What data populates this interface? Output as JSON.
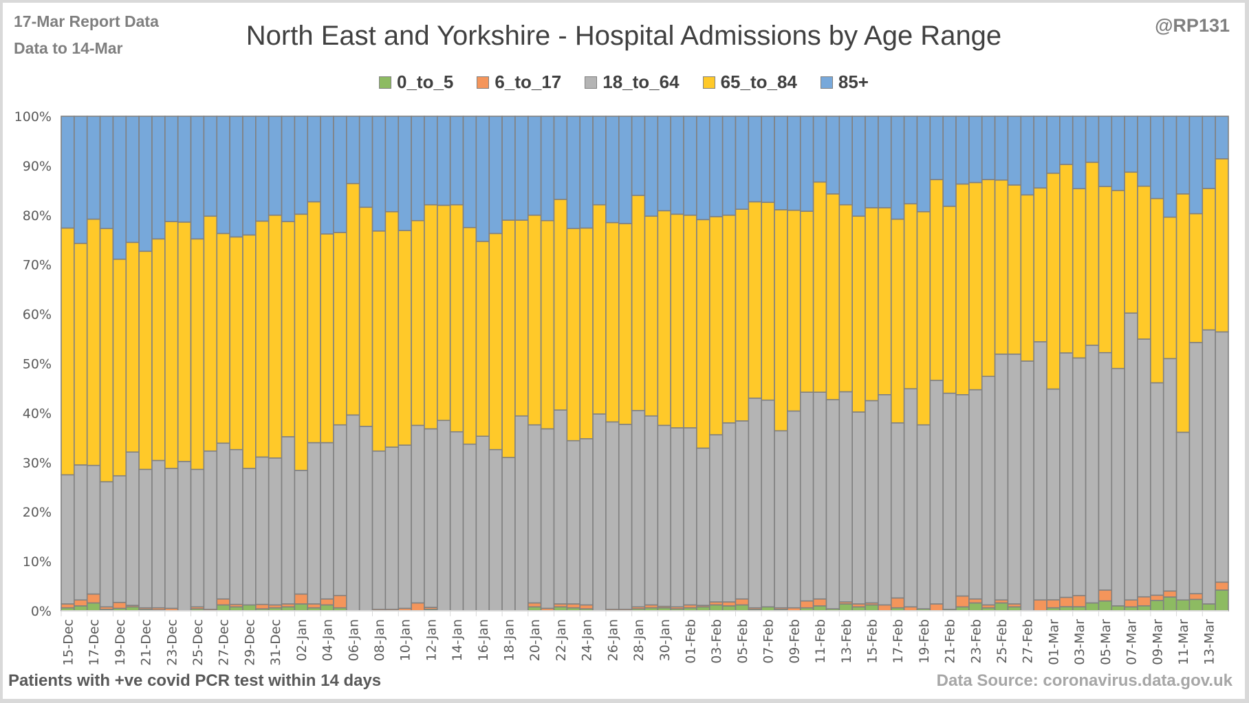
{
  "header": {
    "report_line1": "17-Mar Report Data",
    "report_line2": "Data to 14-Mar",
    "handle": "@RP131"
  },
  "footer": {
    "left": "Patients with  +ve covid PCR test within 14 days",
    "right": "Data Source: coronavirus.data.gov.uk"
  },
  "chart_data": {
    "type": "bar",
    "stacked": "100%",
    "title": "North East and Yorkshire - Hospital Admissions by Age Range",
    "xlabel": "",
    "ylabel": "",
    "ylim": [
      0,
      100
    ],
    "yticks": [
      "0%",
      "10%",
      "20%",
      "30%",
      "40%",
      "50%",
      "60%",
      "70%",
      "80%",
      "90%",
      "100%"
    ],
    "grid": true,
    "legend": "top-center",
    "categories": [
      "15-Dec",
      "16-Dec",
      "17-Dec",
      "18-Dec",
      "19-Dec",
      "20-Dec",
      "21-Dec",
      "22-Dec",
      "23-Dec",
      "24-Dec",
      "25-Dec",
      "26-Dec",
      "27-Dec",
      "28-Dec",
      "29-Dec",
      "30-Dec",
      "31-Dec",
      "01-Jan",
      "02-Jan",
      "03-Jan",
      "04-Jan",
      "05-Jan",
      "06-Jan",
      "07-Jan",
      "08-Jan",
      "09-Jan",
      "10-Jan",
      "11-Jan",
      "12-Jan",
      "13-Jan",
      "14-Jan",
      "15-Jan",
      "16-Jan",
      "17-Jan",
      "18-Jan",
      "19-Jan",
      "20-Jan",
      "21-Jan",
      "22-Jan",
      "23-Jan",
      "24-Jan",
      "25-Jan",
      "26-Jan",
      "27-Jan",
      "28-Jan",
      "29-Jan",
      "30-Jan",
      "31-Jan",
      "01-Feb",
      "02-Feb",
      "03-Feb",
      "04-Feb",
      "05-Feb",
      "06-Feb",
      "07-Feb",
      "08-Feb",
      "09-Feb",
      "10-Feb",
      "11-Feb",
      "12-Feb",
      "13-Feb",
      "14-Feb",
      "15-Feb",
      "16-Feb",
      "17-Feb",
      "18-Feb",
      "19-Feb",
      "20-Feb",
      "21-Feb",
      "22-Feb",
      "23-Feb",
      "24-Feb",
      "25-Feb",
      "26-Feb",
      "27-Feb",
      "28-Feb",
      "01-Mar",
      "02-Mar",
      "03-Mar",
      "04-Mar",
      "05-Mar",
      "06-Mar",
      "07-Mar",
      "08-Mar",
      "09-Mar",
      "10-Mar",
      "11-Mar",
      "12-Mar",
      "13-Mar",
      "14-Mar"
    ],
    "series": [
      {
        "name": "0_to_5",
        "color": "#8dbb62",
        "values": [
          0.6,
          1.0,
          1.6,
          0.3,
          0.5,
          0.8,
          0.3,
          0.2,
          0.0,
          0.0,
          0.4,
          0.0,
          1.2,
          0.8,
          1.2,
          0.4,
          0.6,
          0.8,
          1.4,
          0.6,
          1.2,
          0.6,
          0.0,
          0.0,
          0.0,
          0.0,
          0.0,
          0.0,
          0.3,
          0.0,
          0.0,
          0.0,
          0.0,
          0.0,
          0.0,
          0.0,
          0.8,
          0.0,
          0.8,
          0.6,
          0.4,
          0.0,
          0.0,
          0.0,
          0.4,
          0.6,
          0.6,
          0.4,
          0.6,
          0.8,
          1.2,
          1.0,
          1.2,
          0.3,
          0.8,
          0.3,
          0.0,
          0.6,
          1.0,
          0.4,
          1.4,
          0.8,
          1.2,
          0.0,
          0.6,
          0.0,
          0.4,
          0.0,
          0.3,
          0.8,
          1.6,
          0.6,
          1.6,
          0.8,
          0.0,
          0.0,
          0.6,
          0.8,
          0.8,
          1.6,
          2.0,
          1.0,
          0.8,
          1.0,
          2.0,
          2.8,
          2.2,
          2.4,
          1.4,
          4.2
        ]
      },
      {
        "name": "6_to_17",
        "color": "#f4955b",
        "values": [
          0.8,
          1.2,
          1.8,
          0.5,
          1.2,
          0.3,
          0.3,
          0.4,
          0.5,
          0.0,
          0.4,
          0.3,
          1.2,
          0.5,
          0.0,
          0.9,
          0.6,
          0.6,
          2.0,
          0.8,
          1.2,
          2.5,
          0.0,
          0.0,
          0.3,
          0.3,
          0.5,
          1.6,
          0.4,
          0.0,
          0.0,
          0.0,
          0.0,
          0.0,
          0.0,
          0.0,
          0.8,
          0.5,
          0.6,
          0.8,
          0.8,
          0.0,
          0.3,
          0.3,
          0.4,
          0.6,
          0.3,
          0.4,
          0.6,
          0.3,
          0.6,
          0.8,
          1.2,
          0.3,
          0.0,
          0.3,
          0.6,
          1.4,
          1.4,
          0.0,
          0.4,
          0.6,
          0.4,
          1.2,
          2.0,
          0.8,
          0.0,
          1.4,
          0.0,
          2.2,
          0.8,
          0.6,
          0.6,
          0.6,
          0.0,
          2.2,
          1.6,
          1.8,
          2.2,
          0.0,
          2.2,
          0.0,
          1.4,
          1.8,
          1.0,
          1.2,
          0.0,
          1.2,
          0.0,
          1.6
        ]
      },
      {
        "name": "18_to_64",
        "color": "#b4b4b4",
        "values": [
          26.1,
          27.3,
          26.0,
          25.3,
          25.6,
          31.0,
          28.0,
          29.8,
          28.3,
          30.2,
          27.8,
          32.0,
          31.5,
          31.3,
          27.6,
          29.8,
          29.7,
          33.8,
          25.0,
          32.6,
          31.6,
          34.5,
          39.6,
          37.3,
          32.0,
          32.8,
          33.0,
          35.9,
          36.1,
          38.5,
          36.2,
          33.7,
          35.3,
          32.6,
          31.0,
          39.4,
          36.0,
          36.3,
          39.2,
          33.0,
          33.6,
          39.8,
          37.9,
          37.4,
          39.7,
          38.2,
          36.6,
          36.2,
          35.8,
          31.8,
          33.8,
          36.2,
          36.0,
          42.4,
          41.8,
          35.8,
          39.8,
          42.2,
          41.8,
          42.3,
          42.5,
          38.8,
          40.9,
          42.5,
          35.4,
          44.1,
          37.2,
          45.2,
          43.7,
          40.7,
          42.3,
          46.2,
          49.7,
          50.5,
          50.5,
          52.2,
          42.2,
          47.2,
          46.6,
          52.1,
          48.0,
          48.0,
          58.0,
          51.6,
          40.8,
          47.0,
          33.9,
          52.6,
          55.4,
          50.6
        ]
      },
      {
        "name": "65_to_84",
        "color": "#ffc929",
        "values": [
          49.9,
          44.8,
          49.8,
          51.2,
          43.8,
          42.4,
          44.1,
          44.8,
          49.9,
          48.4,
          46.6,
          47.5,
          42.4,
          43.0,
          47.2,
          47.7,
          49.1,
          43.5,
          51.8,
          48.7,
          42.2,
          38.9,
          46.8,
          44.3,
          44.5,
          47.6,
          43.4,
          41.4,
          45.3,
          43.5,
          45.9,
          43.8,
          39.4,
          43.7,
          48.0,
          39.6,
          42.4,
          42.1,
          42.6,
          42.9,
          42.6,
          42.3,
          40.3,
          40.6,
          43.5,
          40.4,
          43.4,
          43.2,
          43.0,
          46.2,
          44.1,
          42.0,
          42.8,
          39.7,
          40.0,
          44.7,
          40.6,
          36.6,
          42.5,
          41.6,
          37.8,
          39.6,
          39.0,
          37.8,
          41.2,
          37.4,
          43.1,
          40.6,
          37.8,
          42.6,
          41.9,
          39.8,
          35.2,
          34.2,
          33.6,
          31.1,
          43.2,
          36.4,
          33.2,
          37.0,
          33.6,
          36.0,
          28.5,
          30.6,
          35.4,
          28.6,
          48.2,
          27.0,
          28.6,
          35.0
        ]
      },
      {
        "name": "85+",
        "color": "#77a8da",
        "values": [
          22.6,
          25.7,
          20.8,
          22.7,
          28.9,
          25.5,
          27.3,
          24.8,
          21.3,
          21.4,
          24.8,
          20.2,
          23.7,
          24.4,
          24.0,
          21.2,
          20.0,
          21.3,
          19.8,
          17.3,
          23.8,
          23.5,
          13.6,
          18.4,
          23.2,
          19.3,
          23.1,
          21.1,
          17.9,
          18.0,
          17.9,
          22.5,
          25.3,
          23.7,
          21.0,
          21.0,
          20.0,
          21.1,
          16.8,
          22.7,
          22.6,
          17.9,
          21.5,
          21.7,
          16.0,
          20.2,
          19.1,
          19.8,
          20.0,
          20.9,
          20.3,
          20.0,
          18.8,
          17.3,
          17.4,
          18.9,
          19.0,
          19.2,
          13.3,
          15.7,
          17.9,
          20.2,
          18.5,
          18.5,
          20.8,
          17.7,
          19.3,
          12.8,
          18.2,
          13.7,
          13.4,
          12.8,
          12.9,
          13.9,
          15.9,
          14.5,
          11.4,
          9.3,
          14.2,
          9.3,
          14.2,
          15.0,
          11.3,
          14.0,
          15.8,
          20.4,
          15.7,
          20.4,
          14.6,
          8.6
        ]
      }
    ]
  }
}
